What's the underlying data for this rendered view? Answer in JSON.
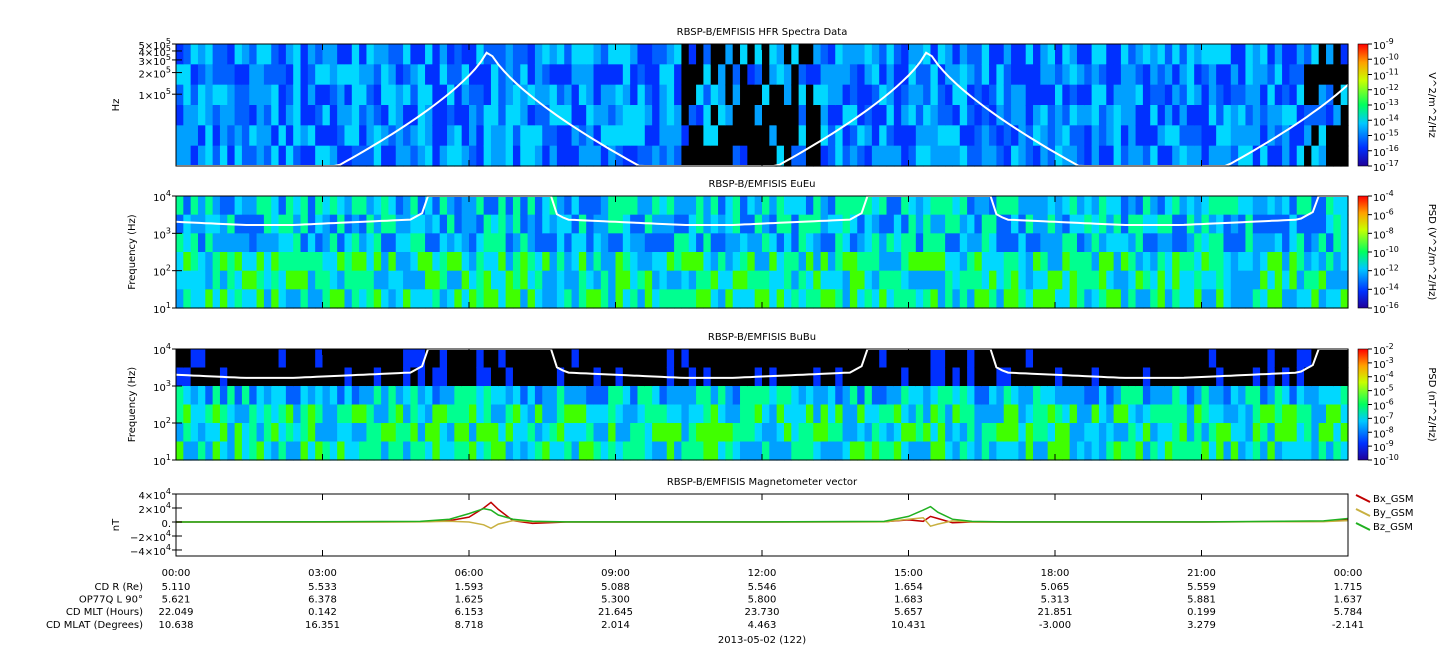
{
  "chart_data": [
    {
      "type": "spectrogram",
      "title": "RBSP-B/EMFISIS  HFR Spectra Data",
      "ylabel": "Hz",
      "log": true,
      "ylim": [
        10000,
        500000
      ],
      "yticks": [
        {
          "value": 100000,
          "label": "1×10^5"
        },
        {
          "value": 200000,
          "label": "2×10^5"
        },
        {
          "value": 300000,
          "label": "3×10^5"
        },
        {
          "value": 400000,
          "label": "4×10^5"
        },
        {
          "value": 500000,
          "label": "5×10^5"
        }
      ],
      "colorbar": {
        "label": "V^2/m^2/Hz",
        "lim": [
          1e-17,
          1e-09
        ],
        "ticks": [
          {
            "value": 1e-17,
            "label": "10^-17"
          },
          {
            "value": 1e-16,
            "label": "10^-16"
          },
          {
            "value": 1e-15,
            "label": "10^-15"
          },
          {
            "value": 1e-14,
            "label": "10^-14"
          },
          {
            "value": 1e-13,
            "label": "10^-13"
          },
          {
            "value": 1e-12,
            "label": "10^-12"
          },
          {
            "value": 1e-11,
            "label": "10^-11"
          },
          {
            "value": 1e-10,
            "label": "10^-10"
          },
          {
            "value": 1e-09,
            "label": "10^-9"
          }
        ]
      }
    },
    {
      "type": "spectrogram",
      "title": "RBSP-B/EMFISIS  EuEu",
      "ylabel": "Frequency (Hz)",
      "log": true,
      "ylim": [
        10,
        10000
      ],
      "yticks": [
        {
          "value": 10,
          "label": "10^1"
        },
        {
          "value": 100,
          "label": "10^2"
        },
        {
          "value": 1000,
          "label": "10^3"
        },
        {
          "value": 10000,
          "label": "10^4"
        }
      ],
      "colorbar": {
        "label": "PSD (V^2/m^2/Hz)",
        "lim": [
          1e-16,
          0.0001
        ],
        "ticks": [
          {
            "value": 1e-16,
            "label": "10^-16"
          },
          {
            "value": 1e-14,
            "label": "10^-14"
          },
          {
            "value": 1e-12,
            "label": "10^-12"
          },
          {
            "value": 1e-10,
            "label": "10^-10"
          },
          {
            "value": 1e-08,
            "label": "10^-8"
          },
          {
            "value": 1e-06,
            "label": "10^-6"
          },
          {
            "value": 0.0001,
            "label": "10^-4"
          }
        ]
      }
    },
    {
      "type": "spectrogram",
      "title": "RBSP-B/EMFISIS  BuBu",
      "ylabel": "Frequency (Hz)",
      "log": true,
      "ylim": [
        10,
        10000
      ],
      "yticks": [
        {
          "value": 10,
          "label": "10^1"
        },
        {
          "value": 100,
          "label": "10^2"
        },
        {
          "value": 1000,
          "label": "10^3"
        },
        {
          "value": 10000,
          "label": "10^4"
        }
      ],
      "colorbar": {
        "label": "PSD (nT^2/Hz)",
        "lim": [
          1e-10,
          0.01
        ],
        "ticks": [
          {
            "value": 1e-10,
            "label": "10^-10"
          },
          {
            "value": 1e-09,
            "label": "10^-9"
          },
          {
            "value": 1e-08,
            "label": "10^-8"
          },
          {
            "value": 1e-07,
            "label": "10^-7"
          },
          {
            "value": 1e-06,
            "label": "10^-6"
          },
          {
            "value": 1e-05,
            "label": "10^-5"
          },
          {
            "value": 0.0001,
            "label": "10^-4"
          },
          {
            "value": 0.001,
            "label": "10^-3"
          },
          {
            "value": 0.01,
            "label": "10^-2"
          }
        ]
      }
    },
    {
      "type": "line",
      "title": "RBSP-B/EMFISIS  Magnetometer vector",
      "ylabel": "nT",
      "ylim": [
        -48600,
        40000
      ],
      "yticks": [
        {
          "value": -40000,
          "label": "−4×10^4"
        },
        {
          "value": -20000,
          "label": "−2×10^4"
        },
        {
          "value": 0,
          "label": "0."
        },
        {
          "value": 20000,
          "label": "2×10^4"
        },
        {
          "value": 40000,
          "label": "4×10^4"
        }
      ],
      "x": [
        0,
        3,
        5,
        5.6,
        6.0,
        6.3,
        6.45,
        6.6,
        6.9,
        7.3,
        8,
        12,
        14.5,
        15.0,
        15.3,
        15.45,
        15.6,
        15.9,
        16.3,
        17,
        21,
        23.5,
        24
      ],
      "series": [
        {
          "name": "Bx_GSM",
          "color": "#c00000",
          "values": [
            0,
            0,
            300,
            2000,
            7000,
            20000,
            28000,
            18000,
            2000,
            -2000,
            0,
            0,
            300,
            3000,
            1000,
            8000,
            5000,
            -1000,
            0,
            0,
            0,
            800,
            3000
          ]
        },
        {
          "name": "By_GSM",
          "color": "#c8b040",
          "values": [
            0,
            0,
            200,
            1000,
            0,
            -4000,
            -9000,
            -3000,
            2000,
            500,
            0,
            0,
            200,
            4000,
            6000,
            -6000,
            -3000,
            1500,
            0,
            0,
            0,
            500,
            2000
          ]
        },
        {
          "name": "Bz_GSM",
          "color": "#20b020",
          "values": [
            0,
            300,
            800,
            4000,
            12000,
            19000,
            17000,
            10000,
            4000,
            1000,
            200,
            200,
            800,
            8000,
            17000,
            22000,
            14000,
            4000,
            800,
            200,
            200,
            1500,
            5000
          ]
        }
      ]
    }
  ],
  "time_axis": {
    "xlim": [
      0,
      24
    ],
    "xlabel": "2013-05-02 (122)",
    "xticks": [
      {
        "value": 0,
        "label": "00:00"
      },
      {
        "value": 3,
        "label": "03:00"
      },
      {
        "value": 6,
        "label": "06:00"
      },
      {
        "value": 9,
        "label": "09:00"
      },
      {
        "value": 12,
        "label": "12:00"
      },
      {
        "value": 15,
        "label": "15:00"
      },
      {
        "value": 18,
        "label": "18:00"
      },
      {
        "value": 21,
        "label": "21:00"
      },
      {
        "value": 24,
        "label": "00:00"
      }
    ]
  },
  "ephemeris": [
    {
      "label": "CD R (Re)",
      "values": [
        "5.110",
        "5.533",
        "1.593",
        "5.088",
        "5.546",
        "1.654",
        "5.065",
        "5.559",
        "1.715"
      ]
    },
    {
      "label": "OP77Q L 90°",
      "values": [
        "5.621",
        "6.378",
        "1.625",
        "5.300",
        "5.800",
        "1.683",
        "5.313",
        "5.881",
        "1.637"
      ]
    },
    {
      "label": "CD MLT (Hours)",
      "values": [
        "22.049",
        "0.142",
        "6.153",
        "21.645",
        "23.730",
        "5.657",
        "21.851",
        "0.199",
        "5.784"
      ]
    },
    {
      "label": "CD MLAT (Degrees)",
      "values": [
        "10.638",
        "16.351",
        "8.718",
        "2.014",
        "4.463",
        "10.431",
        "-3.000",
        "3.279",
        "-2.141"
      ]
    }
  ]
}
